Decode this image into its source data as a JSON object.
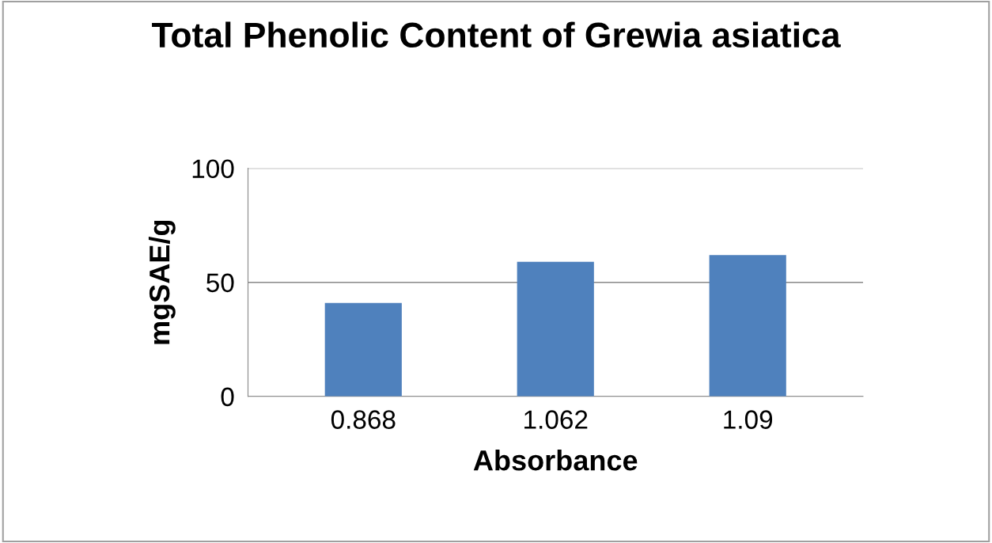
{
  "chart_data": {
    "type": "bar",
    "title": "Total Phenolic Content of Grewia asiatica",
    "xlabel": "Absorbance",
    "ylabel": "mgSAE/g",
    "categories": [
      "0.868",
      "1.062",
      "1.09"
    ],
    "values": [
      41,
      59,
      62
    ],
    "color": "#4f81bd",
    "ylim": [
      0,
      100
    ],
    "yticks": [
      0,
      50,
      100
    ],
    "grid": "y",
    "legend": false
  }
}
